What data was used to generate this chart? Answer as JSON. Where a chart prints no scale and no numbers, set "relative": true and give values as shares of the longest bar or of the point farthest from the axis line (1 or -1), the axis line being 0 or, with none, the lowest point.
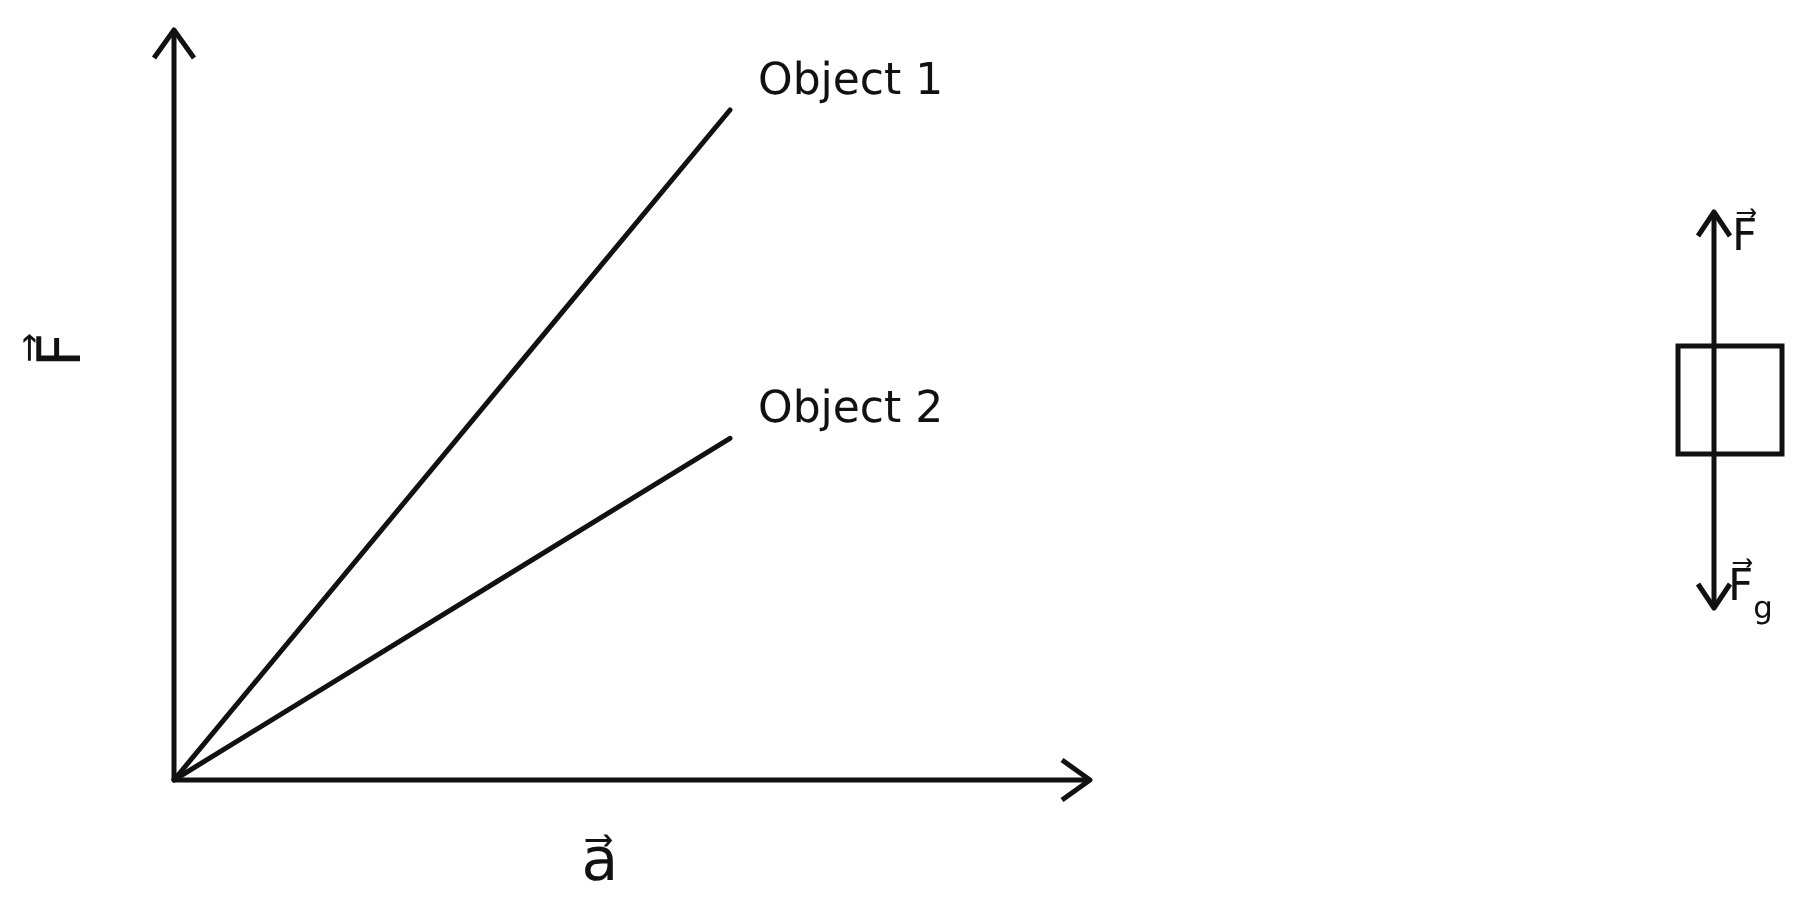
{
  "chart_data": {
    "type": "line",
    "relative": true,
    "xlabel": "a⃗",
    "ylabel": "F⃗",
    "categories": [
      null,
      null
    ],
    "series": [
      {
        "name": "Object 1",
        "color": "#111111",
        "values": [
          0,
          1
        ]
      },
      {
        "name": "Object 2",
        "color": "#111111",
        "values": [
          0,
          0.51
        ]
      }
    ],
    "annotations": [
      "F⃗",
      "F⃗$_{g}$"
    ]
  }
}
